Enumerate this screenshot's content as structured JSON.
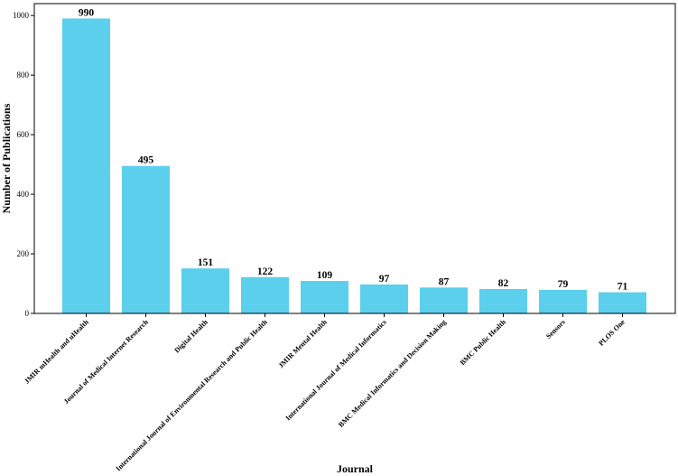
{
  "chart_data": {
    "type": "bar",
    "categories": [
      "JMIR mHealth and uHealth",
      "Journal of Medical Internet Research",
      "Digital Health",
      "International Journal of Environmental Research and Public Health",
      "JMIR Mental Health",
      "International Journal of Medical Informatics",
      "BMC Medical Informatics and Decision Making",
      "BMC Public Health",
      "Sensors",
      "PLOS One"
    ],
    "values": [
      990,
      495,
      151,
      122,
      109,
      97,
      87,
      82,
      79,
      71
    ],
    "title": "",
    "xlabel": "Journal",
    "ylabel": "Number of Publications",
    "ylim": [
      0,
      1040
    ],
    "yticks": [
      0,
      200,
      400,
      600,
      800,
      1000
    ],
    "bar_color": "#5BCFEC",
    "data_labels": true,
    "grid": false,
    "legend": "none"
  }
}
